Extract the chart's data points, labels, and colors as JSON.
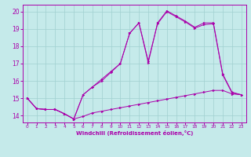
{
  "xlabel": "Windchill (Refroidissement éolien,°C)",
  "background_color": "#c5eaea",
  "grid_color": "#a0d0d0",
  "line_color": "#aa00aa",
  "xlim": [
    -0.5,
    23.5
  ],
  "ylim": [
    13.6,
    20.4
  ],
  "yticks": [
    14,
    15,
    16,
    17,
    18,
    19,
    20
  ],
  "xticks": [
    0,
    1,
    2,
    3,
    4,
    5,
    6,
    7,
    8,
    9,
    10,
    11,
    12,
    13,
    14,
    15,
    16,
    17,
    18,
    19,
    20,
    21,
    22,
    23
  ],
  "line1_x": [
    0,
    1,
    2,
    3,
    4,
    5,
    6,
    7,
    8,
    9,
    10,
    11,
    12,
    13,
    14,
    15,
    16,
    17,
    18,
    19,
    20,
    21,
    22,
    23
  ],
  "line1_y": [
    15.0,
    14.4,
    14.35,
    14.35,
    14.1,
    13.8,
    13.95,
    14.15,
    14.25,
    14.35,
    14.45,
    14.55,
    14.65,
    14.75,
    14.85,
    14.95,
    15.05,
    15.15,
    15.25,
    15.35,
    15.45,
    15.45,
    15.25,
    15.2
  ],
  "line2_x": [
    0,
    1,
    2,
    3,
    4,
    5,
    6,
    7,
    8,
    9,
    10,
    11,
    12,
    13,
    14,
    15,
    16,
    17,
    18,
    19,
    20,
    21,
    22,
    23
  ],
  "line2_y": [
    15.0,
    14.4,
    14.35,
    14.35,
    14.1,
    13.8,
    15.2,
    15.65,
    16.1,
    16.55,
    17.0,
    18.75,
    19.35,
    17.05,
    19.35,
    20.05,
    19.75,
    19.45,
    19.1,
    19.35,
    19.35,
    16.4,
    15.35,
    15.2
  ],
  "line3_x": [
    0,
    1,
    2,
    3,
    4,
    5,
    6,
    7,
    8,
    9,
    10,
    11,
    12,
    13,
    14,
    15,
    16,
    17,
    18,
    19,
    20,
    21,
    22,
    23
  ],
  "line3_y": [
    15.0,
    14.4,
    14.35,
    14.35,
    14.1,
    13.8,
    15.2,
    15.65,
    16.0,
    16.5,
    17.0,
    18.75,
    19.35,
    17.15,
    19.3,
    20.0,
    19.7,
    19.4,
    19.05,
    19.25,
    19.3,
    16.35,
    15.3,
    15.2
  ]
}
